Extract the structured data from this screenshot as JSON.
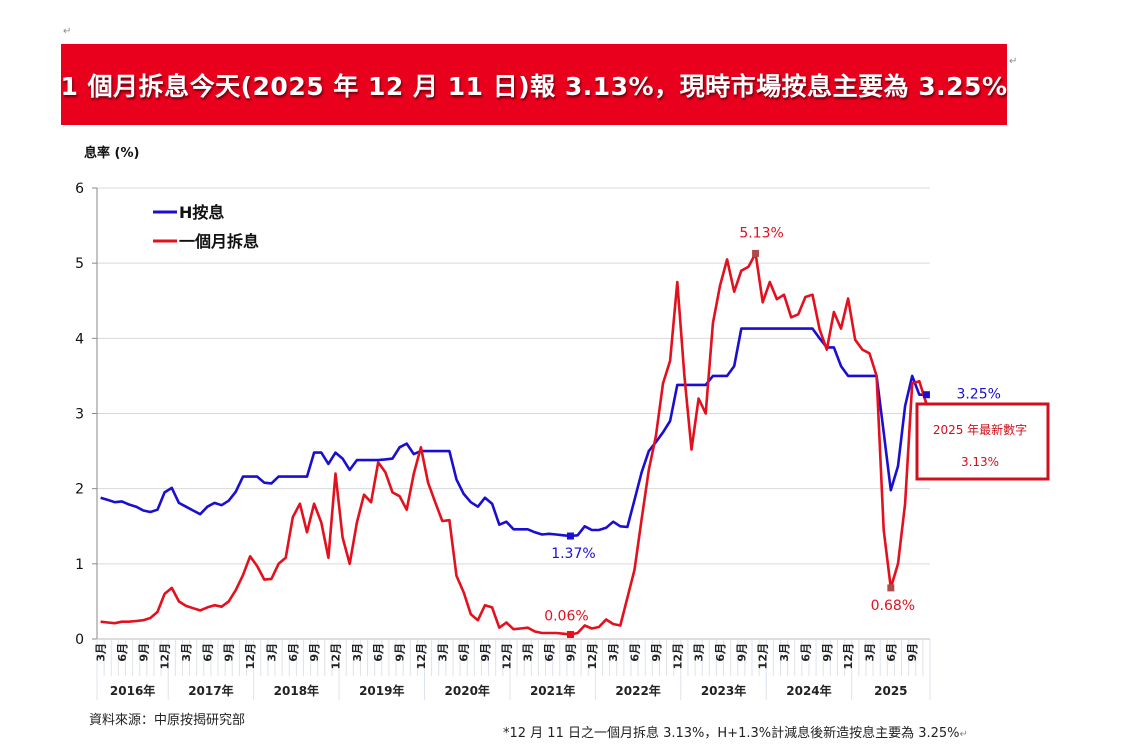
{
  "banner": {
    "title": "1 個月拆息今天(2025 年 12 月 11 日)報 3.13%，現時市場按息主要為 3.25%",
    "background_color": "#e8001c"
  },
  "footer": {
    "source": "資料來源：中原按揭研究部",
    "note": "*12 月 11 日之一個月拆息 3.13%，H+1.3%計減息後新造按息主要為 3.25%"
  },
  "chart_data": {
    "type": "line",
    "title": "",
    "ylabel": "息率 (%)",
    "xlabel": "",
    "ylim": [
      0,
      6
    ],
    "yticks": [
      0,
      1,
      2,
      3,
      4,
      5,
      6
    ],
    "grid": "horizontal",
    "legend_position": "top-left",
    "x_start": "2016-03",
    "x_end": "2025-11",
    "x_frequency": "monthly",
    "x_tick_months": [
      "3月",
      "6月",
      "9月",
      "12月"
    ],
    "x_year_labels": [
      "2016年",
      "2017年",
      "2018年",
      "2019年",
      "2020年",
      "2021年",
      "2022年",
      "2023年",
      "2024年",
      "2025"
    ],
    "series": [
      {
        "name": "H按息",
        "color": "#1a0fd0",
        "values": [
          1.88,
          1.85,
          1.82,
          1.83,
          1.79,
          1.76,
          1.71,
          1.69,
          1.72,
          1.95,
          2.01,
          1.81,
          1.76,
          1.71,
          1.66,
          1.76,
          1.81,
          1.78,
          1.84,
          1.96,
          2.16,
          2.16,
          2.16,
          2.08,
          2.07,
          2.16,
          2.16,
          2.16,
          2.16,
          2.16,
          2.48,
          2.48,
          2.33,
          2.48,
          2.4,
          2.25,
          2.38,
          2.38,
          2.38,
          2.38,
          2.39,
          2.4,
          2.55,
          2.6,
          2.46,
          2.5,
          2.5,
          2.5,
          2.5,
          2.5,
          2.12,
          1.93,
          1.82,
          1.76,
          1.88,
          1.8,
          1.52,
          1.56,
          1.46,
          1.46,
          1.46,
          1.42,
          1.39,
          1.4,
          1.39,
          1.38,
          1.37,
          1.38,
          1.5,
          1.45,
          1.45,
          1.48,
          1.56,
          1.5,
          1.49,
          1.85,
          2.22,
          2.5,
          2.62,
          2.75,
          2.9,
          3.38,
          3.38,
          3.38,
          3.38,
          3.38,
          3.5,
          3.5,
          3.5,
          3.63,
          4.13,
          4.13,
          4.13,
          4.13,
          4.13,
          4.13,
          4.13,
          4.13,
          4.13,
          4.13,
          4.13,
          4.0,
          3.88,
          3.88,
          3.63,
          3.5,
          3.5,
          3.5,
          3.5,
          3.5,
          2.75,
          1.98,
          2.3,
          3.1,
          3.5,
          3.25,
          3.25
        ]
      },
      {
        "name": "一個月拆息",
        "color": "#e3101e",
        "values": [
          0.23,
          0.22,
          0.21,
          0.23,
          0.23,
          0.24,
          0.25,
          0.28,
          0.36,
          0.6,
          0.68,
          0.5,
          0.44,
          0.41,
          0.38,
          0.42,
          0.45,
          0.43,
          0.5,
          0.65,
          0.85,
          1.1,
          0.97,
          0.79,
          0.8,
          1.0,
          1.08,
          1.62,
          1.8,
          1.42,
          1.8,
          1.55,
          1.08,
          2.2,
          1.35,
          1.0,
          1.55,
          1.92,
          1.82,
          2.35,
          2.22,
          1.95,
          1.9,
          1.72,
          2.2,
          2.55,
          2.08,
          1.82,
          1.57,
          1.58,
          0.84,
          0.62,
          0.33,
          0.25,
          0.45,
          0.42,
          0.15,
          0.22,
          0.13,
          0.14,
          0.15,
          0.1,
          0.08,
          0.08,
          0.08,
          0.07,
          0.06,
          0.08,
          0.18,
          0.14,
          0.16,
          0.26,
          0.2,
          0.18,
          0.55,
          0.92,
          1.6,
          2.25,
          2.7,
          3.4,
          3.7,
          4.75,
          3.5,
          2.52,
          3.2,
          3.0,
          4.2,
          4.7,
          5.05,
          4.62,
          4.9,
          4.95,
          5.13,
          4.48,
          4.75,
          4.52,
          4.58,
          4.28,
          4.32,
          4.55,
          4.58,
          4.12,
          3.85,
          4.35,
          4.13,
          4.53,
          3.98,
          3.85,
          3.8,
          3.5,
          1.45,
          0.68,
          1.0,
          1.8,
          3.4,
          3.43,
          3.13
        ]
      }
    ],
    "annotations": [
      {
        "series": 0,
        "date": "2021-09",
        "value": 1.37,
        "label": "1.37%"
      },
      {
        "series": 1,
        "date": "2021-09",
        "value": 0.06,
        "label": "0.06%"
      },
      {
        "series": 1,
        "date": "2023-11",
        "value": 5.13,
        "label": "5.13%"
      },
      {
        "series": 1,
        "date": "2025-06",
        "value": 0.68,
        "label": "0.68%"
      },
      {
        "series": 0,
        "date": "2025-11",
        "value": 3.25,
        "label": "3.25%"
      }
    ],
    "callout": {
      "line1": "2025 年最新數字",
      "line2": "3.13%",
      "color": "#d0101e"
    }
  }
}
